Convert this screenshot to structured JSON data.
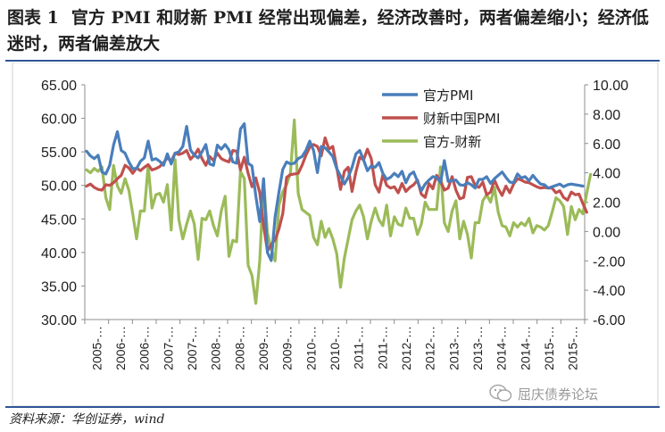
{
  "figure": {
    "label": "图表 1",
    "title": "官方 PMI 和财新 PMI 经常出现偏差，经济改善时，两者偏差缩小；经济低迷时，两者偏差放大",
    "source": "资料来源：华创证券，wind",
    "watermark": "屈庆债券论坛"
  },
  "chart_data": {
    "type": "line",
    "title": "",
    "xlabel": "",
    "ylabel": "",
    "y_left": {
      "min": 30,
      "max": 65,
      "step": 5,
      "ticks": [
        "30.00",
        "35.00",
        "40.00",
        "45.00",
        "50.00",
        "55.00",
        "60.00",
        "65.00"
      ]
    },
    "y_right": {
      "min": -6,
      "max": 10,
      "step": 2,
      "ticks": [
        "-6.00",
        "-4.00",
        "-2.00",
        "0.00",
        "2.00",
        "4.00",
        "6.00",
        "8.00",
        "10.00"
      ]
    },
    "x_ticks": [
      "2005-…",
      "2006-…",
      "2006-…",
      "2007-…",
      "2007-…",
      "2008-…",
      "2008-…",
      "2009-…",
      "2009-…",
      "2010-…",
      "2010-…",
      "2011-…",
      "2011-…",
      "2012-…",
      "2012-…",
      "2013-…",
      "2013-…",
      "2014-…",
      "2014-…",
      "2015-…",
      "2015-…"
    ],
    "legend_position": "top-right",
    "grid": false,
    "series": [
      {
        "name": "官方PMI",
        "axis": "left",
        "color": "#4a7ebb",
        "values": [
          55.1,
          54.4,
          54.0,
          54.5,
          52.0,
          51.7,
          53.0,
          56.0,
          58.0,
          55.2,
          54.8,
          53.5,
          52.5,
          52.5,
          53.6,
          54.1,
          56.6,
          53.8,
          54.0,
          53.6,
          53.0,
          54.7,
          53.2,
          54.8,
          55.0,
          55.8,
          58.8,
          55.3,
          54.5,
          54.1,
          55.0,
          56.1,
          53.2,
          53.0,
          56.0,
          55.4,
          56.1,
          55.3,
          53.5,
          53.3,
          58.4,
          59.2,
          53.3,
          52.9,
          48.4,
          44.6,
          51.0,
          40.0,
          38.8,
          45.3,
          49.0,
          52.4,
          53.5,
          53.2,
          53.3,
          54.0,
          54.3,
          55.2,
          56.6,
          55.2,
          51.9,
          55.8,
          55.6,
          55.0,
          54.3,
          52.5,
          51.4,
          50.2,
          51.2,
          52.7,
          54.7,
          55.2,
          53.8,
          52.2,
          52.9,
          52.7,
          53.4,
          51.8,
          50.9,
          51.2,
          51.8,
          51.3,
          52.1,
          50.4,
          51.6,
          52.0,
          50.6,
          49.2,
          50.2,
          50.8,
          51.3,
          51.2,
          50.4,
          53.7,
          50.6,
          50.7,
          50.8,
          50.1,
          50.0,
          50.4,
          50.1,
          49.6,
          50.9,
          50.9,
          51.3,
          50.3,
          51.0,
          51.5,
          52.0,
          51.2,
          50.5,
          50.4,
          51.7,
          51.1,
          51.3,
          50.7,
          51.5,
          50.8,
          50.2,
          50.1,
          49.6,
          49.8,
          50.0,
          50.2,
          49.8,
          50.1,
          50.2,
          50.1,
          50.0,
          49.9
        ]
      },
      {
        "name": "财新中国PMI",
        "axis": "left",
        "color": "#c0504d",
        "values": [
          49.9,
          50.2,
          49.7,
          49.4,
          49.3,
          50.1,
          50.0,
          50.4,
          51.0,
          51.5,
          53.0,
          52.6,
          51.8,
          52.6,
          52.2,
          52.7,
          53.1,
          52.3,
          52.5,
          52.8,
          53.4,
          54.1,
          53.6,
          54.8,
          54.6,
          54.8,
          55.2,
          53.9,
          54.5,
          55.4,
          54.0,
          53.0,
          54.3,
          53.7,
          54.8,
          54.0,
          53.7,
          53.5,
          55.2,
          55.1,
          52.3,
          54.2,
          51.8,
          49.8,
          51.1,
          48.9,
          44.0,
          40.2,
          41.2,
          41.9,
          43.5,
          45.8,
          51.2,
          51.6,
          51.7,
          51.8,
          53.0,
          54.5,
          55.7,
          56.1,
          55.8,
          54.4,
          57.1,
          55.4,
          55.8,
          52.7,
          49.4,
          52.1,
          52.7,
          49.1,
          52.0,
          54.2,
          53.8,
          55.4,
          54.0,
          50.1,
          49.0,
          51.6,
          50.0,
          49.6,
          49.8,
          48.9,
          50.3,
          49.1,
          49.7,
          50.1,
          50.8,
          48.7,
          48.2,
          50.3,
          49.5,
          51.5,
          50.7,
          49.3,
          49.6,
          51.3,
          49.3,
          48.0,
          48.2,
          51.2,
          51.3,
          50.0,
          49.7,
          50.5,
          48.6,
          49.0,
          50.8,
          49.5,
          48.5,
          49.9,
          48.9,
          50.2,
          51.0,
          50.8,
          50.5,
          50.4,
          50.1,
          49.8,
          49.6,
          49.7,
          49.6,
          49.6,
          48.9,
          49.2,
          48.2,
          47.8,
          49.0,
          48.6,
          48.7,
          47.3,
          46.0
        ]
      },
      {
        "name": "官方-财新",
        "axis": "right",
        "color": "#9bbb59",
        "values": [
          4.2,
          4.0,
          4.3,
          4.1,
          4.4,
          2.3,
          1.5,
          4.5,
          3.1,
          2.6,
          3.6,
          2.8,
          1.2,
          -0.5,
          1.4,
          1.4,
          4.5,
          1.6,
          2.5,
          2.6,
          2.0,
          3.2,
          0.1,
          4.9,
          0.8,
          -0.5,
          0.5,
          1.4,
          0.5,
          -1.9,
          0.9,
          0.8,
          1.4,
          0.4,
          -0.3,
          1.4,
          2.4,
          -1.7,
          -0.6,
          -0.7,
          4.1,
          3.6,
          -2.3,
          -3.0,
          -4.9,
          -2.0,
          3.5,
          -0.1,
          -1.2,
          -2.0,
          1.8,
          2.7,
          3.2,
          4.0,
          7.6,
          2.6,
          1.5,
          1.3,
          1.1,
          -0.4,
          -0.9,
          0.7,
          -0.4,
          0.2,
          -0.5,
          -1.5,
          -3.8,
          -1.8,
          -0.5,
          0.8,
          1.4,
          1.8,
          1.0,
          -0.5,
          0.7,
          1.6,
          0.8,
          0.4,
          1.8,
          -0.3,
          1.0,
          0.5,
          0.4,
          1.6,
          0.9,
          0.9,
          -0.2,
          0.5,
          2.0,
          1.5,
          1.5,
          1.5,
          4.4,
          0.6,
          0.0,
          1.4,
          2.1,
          -0.5,
          0.7,
          -0.2,
          -1.8,
          0.6,
          0.6,
          2.1,
          2.5,
          2.0,
          3.0,
          1.3,
          0.4,
          0.3,
          -0.3,
          0.6,
          0.3,
          0.6,
          0.4,
          0.9,
          -0.1,
          0.4,
          0.3,
          0.1,
          0.4,
          1.3,
          2.3,
          2.1,
          1.7,
          -0.2,
          1.7,
          0.8,
          1.5,
          1.2,
          2.6,
          3.9
        ]
      }
    ]
  }
}
